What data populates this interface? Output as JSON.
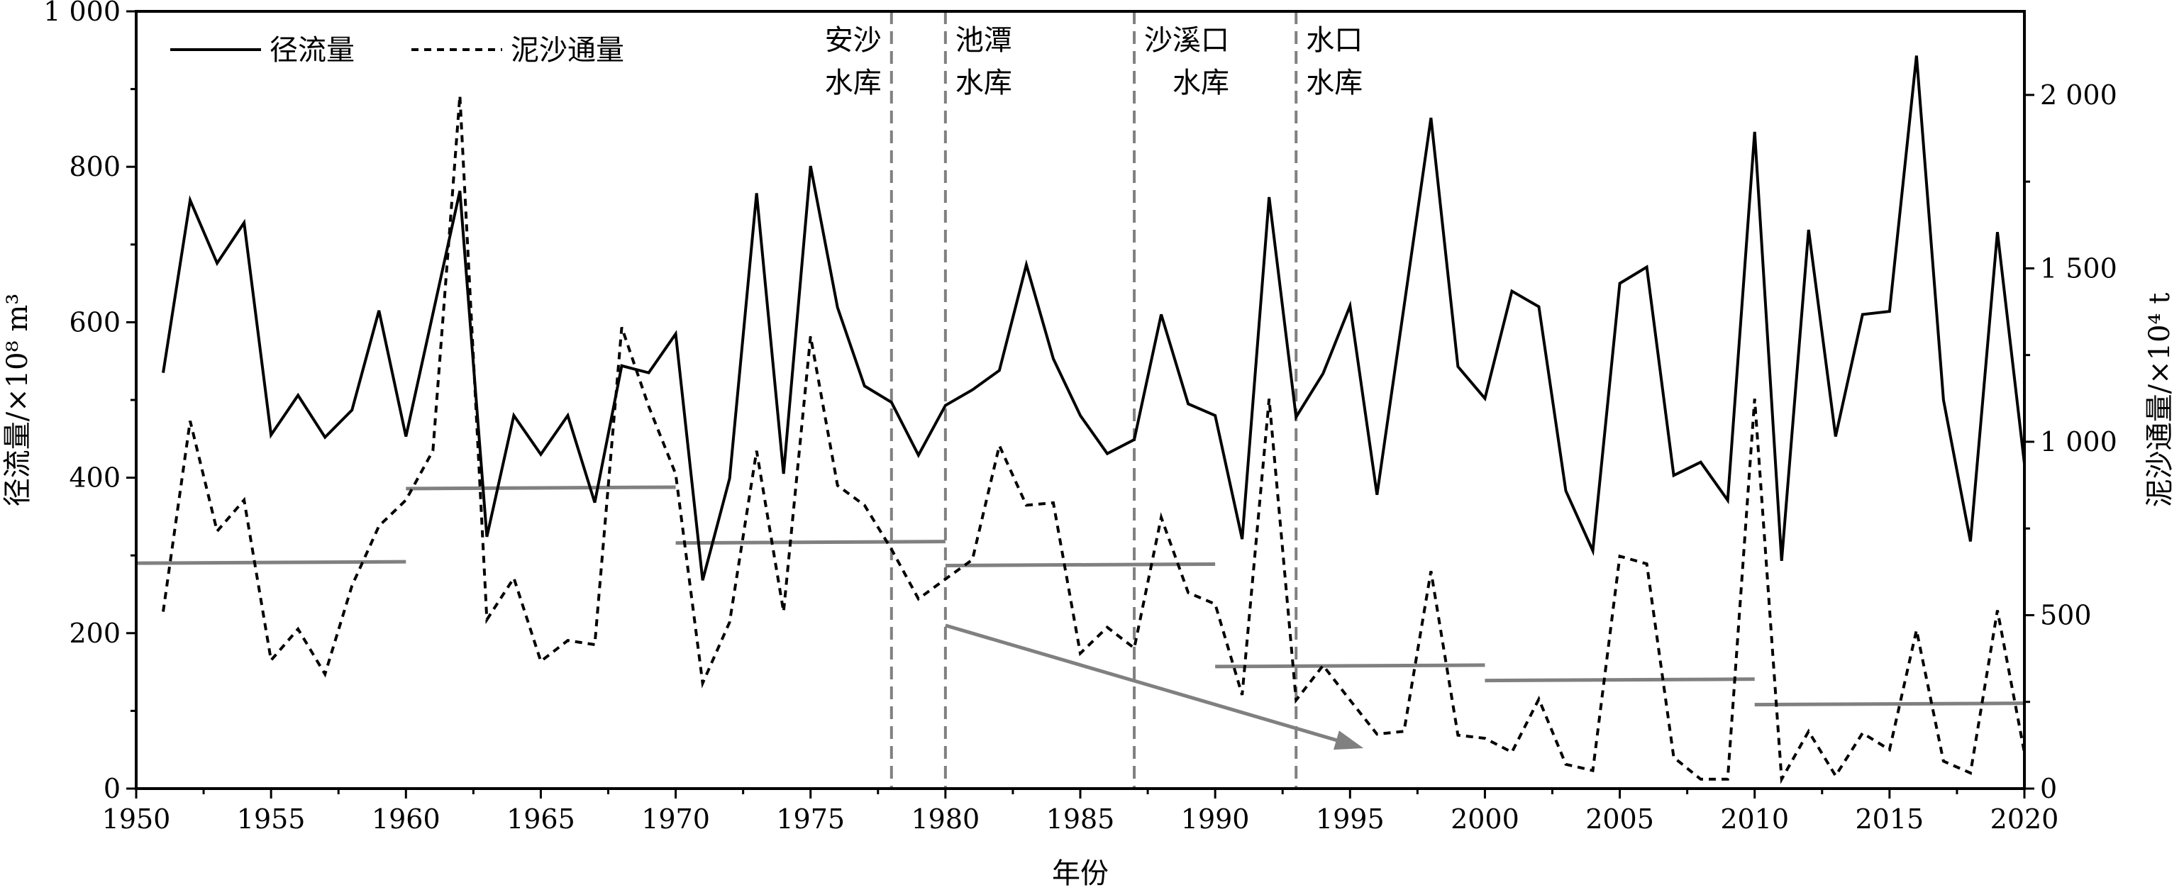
{
  "chart_data": {
    "type": "line",
    "xlabel": "年份",
    "ylabel_left": "径流量/×10⁸ m³",
    "ylabel_right": "泥沙通量/×10⁴ t",
    "xlim": [
      1950,
      2020
    ],
    "ylim_left": [
      0,
      1000
    ],
    "ylim_right": [
      0,
      2241
    ],
    "x_ticks": [
      1950,
      1955,
      1960,
      1965,
      1970,
      1975,
      1980,
      1985,
      1990,
      1995,
      2000,
      2005,
      2010,
      2015,
      2020
    ],
    "left_ticks": [
      {
        "v": 0,
        "label": "0"
      },
      {
        "v": 200,
        "label": "200"
      },
      {
        "v": 400,
        "label": "400"
      },
      {
        "v": 600,
        "label": "600"
      },
      {
        "v": 800,
        "label": "800"
      },
      {
        "v": 1000,
        "label": "1 000"
      }
    ],
    "right_ticks": [
      {
        "v": 0,
        "label": "0"
      },
      {
        "v": 500,
        "label": "500"
      },
      {
        "v": 1000,
        "label": "1 000"
      },
      {
        "v": 1500,
        "label": "1 500"
      },
      {
        "v": 2000,
        "label": "2 000"
      }
    ],
    "legend": {
      "position": "top-left",
      "entries": [
        "径流量",
        "泥沙通量"
      ]
    },
    "x": [
      1951,
      1952,
      1953,
      1954,
      1955,
      1956,
      1957,
      1958,
      1959,
      1960,
      1961,
      1962,
      1963,
      1964,
      1965,
      1966,
      1967,
      1968,
      1969,
      1970,
      1971,
      1972,
      1973,
      1974,
      1975,
      1976,
      1977,
      1978,
      1979,
      1980,
      1981,
      1982,
      1983,
      1984,
      1985,
      1986,
      1987,
      1988,
      1989,
      1990,
      1991,
      1992,
      1993,
      1994,
      1995,
      1996,
      1997,
      1998,
      1999,
      2000,
      2001,
      2002,
      2003,
      2004,
      2005,
      2006,
      2007,
      2008,
      2009,
      2010,
      2011,
      2012,
      2013,
      2014,
      2015,
      2016,
      2017,
      2018,
      2019,
      2020
    ],
    "series": [
      {
        "name": "径流量",
        "axis": "left",
        "style": "solid",
        "values": [
          535,
          757,
          676,
          728,
          455,
          506,
          452,
          487,
          615,
          453,
          611,
          769,
          324,
          480,
          430,
          480,
          368,
          544,
          535,
          585,
          268,
          399,
          766,
          405,
          801,
          619,
          518,
          497,
          429,
          493,
          513,
          538,
          674,
          553,
          480,
          431,
          449,
          610,
          495,
          480,
          321,
          761,
          478,
          534,
          621,
          378,
          620,
          863,
          543,
          502,
          640,
          620,
          383,
          306,
          650,
          671,
          403,
          420,
          371,
          845,
          293,
          719,
          453,
          610,
          614,
          943,
          500,
          318,
          716,
          418
        ]
      },
      {
        "name": "泥沙通量",
        "axis": "right",
        "style": "dashed",
        "values": [
          510,
          1060,
          742,
          832,
          370,
          460,
          330,
          585,
          757,
          832,
          974,
          1998,
          487,
          607,
          367,
          427,
          415,
          1330,
          1102,
          907,
          304,
          480,
          974,
          510,
          1304,
          874,
          817,
          690,
          547,
          604,
          660,
          989,
          817,
          824,
          390,
          465,
          405,
          782,
          565,
          532,
          270,
          1124,
          255,
          355,
          255,
          157,
          165,
          627,
          154,
          145,
          105,
          258,
          70,
          52,
          670,
          648,
          90,
          27,
          27,
          1124,
          27,
          165,
          37,
          160,
          112,
          457,
          79,
          45,
          514,
          104
        ]
      }
    ],
    "decadal_means_left_axis": [
      {
        "from": 1950,
        "to": 1960,
        "value": 290
      },
      {
        "from": 1960,
        "to": 1970,
        "value": 386
      },
      {
        "from": 1970,
        "to": 1980,
        "value": 316
      },
      {
        "from": 1980,
        "to": 1990,
        "value": 287
      },
      {
        "from": 1990,
        "to": 2000,
        "value": 157
      },
      {
        "from": 2000,
        "to": 2010,
        "value": 139
      },
      {
        "from": 2010,
        "to": 2020,
        "value": 108
      }
    ],
    "trend_arrow": {
      "from": [
        1980,
        210
      ],
      "to": [
        1995.5,
        52
      ]
    },
    "reservoirs": [
      {
        "year": 1978,
        "line1": "安沙",
        "line2": "水库",
        "side": "left"
      },
      {
        "year": 1980,
        "line1": "池潭",
        "line2": "水库",
        "side": "right"
      },
      {
        "year": 1987,
        "line1": "沙溪口",
        "line2": "水库",
        "side": "right"
      },
      {
        "year": 1993,
        "line1": "水口",
        "line2": "水库",
        "side": "right"
      }
    ],
    "colors": {
      "runoff": "#000000",
      "sediment": "#000000",
      "means": "#808080",
      "reservoir_lines": "#808080"
    }
  }
}
